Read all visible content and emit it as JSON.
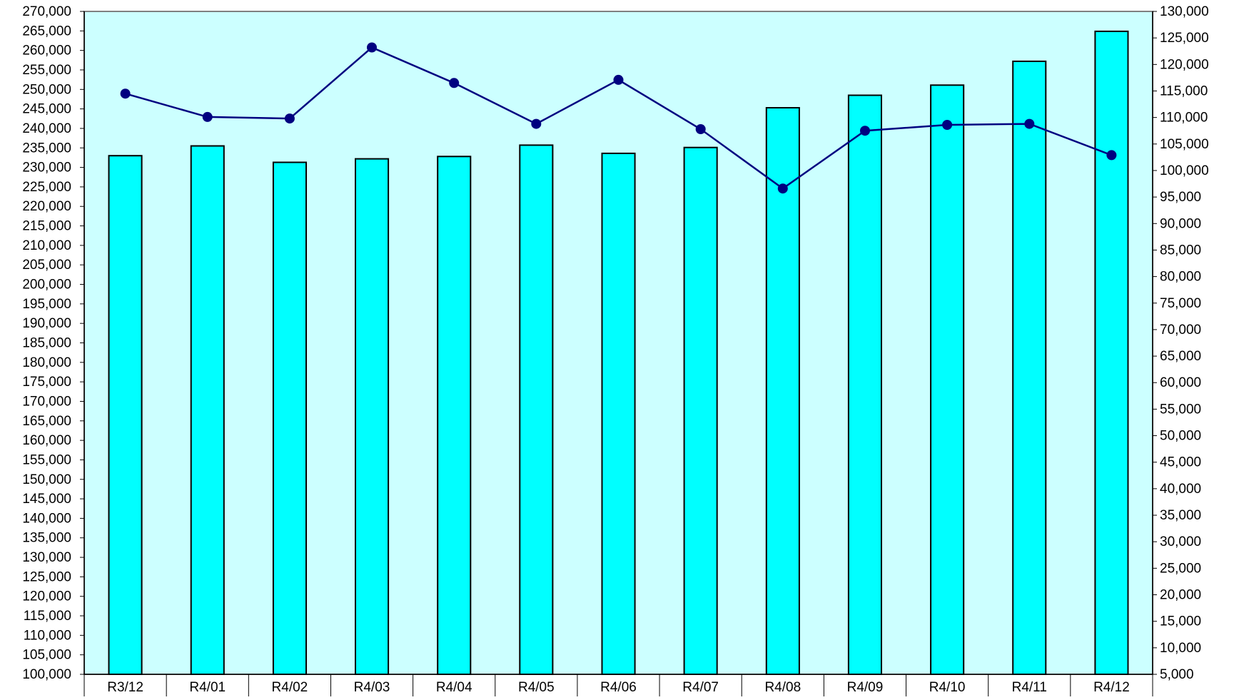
{
  "chart_data": {
    "type": "bar+line",
    "title": "",
    "categories": [
      "R3/12",
      "R4/01",
      "R4/02",
      "R4/03",
      "R4/04",
      "R4/05",
      "R4/06",
      "R4/07",
      "R4/08",
      "R4/09",
      "R4/10",
      "R4/11",
      "R4/12"
    ],
    "series": [
      {
        "type": "bar",
        "axis": "left",
        "color": "#00ffff",
        "values": [
          233000,
          235500,
          231300,
          232200,
          232800,
          235700,
          233600,
          235100,
          245300,
          248500,
          251100,
          257200,
          264900
        ]
      },
      {
        "type": "line",
        "axis": "right",
        "color": "#000080",
        "values": [
          114500,
          110100,
          109800,
          123200,
          116500,
          108800,
          117100,
          107800,
          96600,
          107500,
          108600,
          108800,
          102900
        ]
      }
    ],
    "y_left": {
      "min": 100000,
      "max": 270000,
      "step": 5000,
      "ticks": [
        "100,000",
        "105,000",
        "110,000",
        "115,000",
        "120,000",
        "125,000",
        "130,000",
        "135,000",
        "140,000",
        "145,000",
        "150,000",
        "155,000",
        "160,000",
        "165,000",
        "170,000",
        "175,000",
        "180,000",
        "185,000",
        "190,000",
        "195,000",
        "200,000",
        "205,000",
        "210,000",
        "215,000",
        "220,000",
        "225,000",
        "230,000",
        "235,000",
        "240,000",
        "245,000",
        "250,000",
        "255,000",
        "260,000",
        "265,000",
        "270,000"
      ]
    },
    "y_right": {
      "min": 5000,
      "max": 130000,
      "step": 5000,
      "ticks": [
        "5,000",
        "10,000",
        "15,000",
        "20,000",
        "25,000",
        "30,000",
        "35,000",
        "40,000",
        "45,000",
        "50,000",
        "55,000",
        "60,000",
        "65,000",
        "70,000",
        "75,000",
        "80,000",
        "85,000",
        "90,000",
        "95,000",
        "100,000",
        "105,000",
        "110,000",
        "115,000",
        "120,000",
        "125,000",
        "130,000"
      ]
    },
    "plot_background": "#ccffff",
    "bar_border": "#000000",
    "legend": "none",
    "grid": false
  }
}
